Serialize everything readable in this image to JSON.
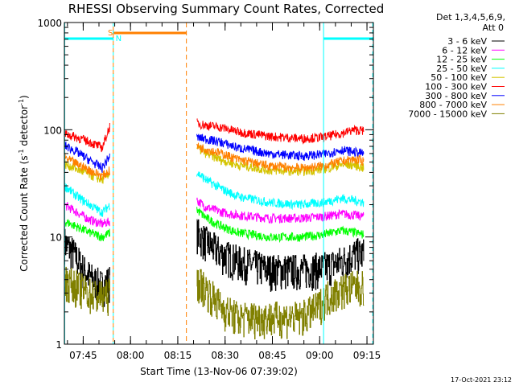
{
  "chart_data": {
    "type": "line",
    "title": "RHESSI Observing Summary Count Rates, Corrected",
    "xlabel": "Start Time (13-Nov-06 07:39:02)",
    "ylabel_main": "Corrected Count Rate (s",
    "ylabel_sup1": "-1",
    "ylabel_mid": " detector",
    "ylabel_sup2": "-1",
    "ylabel_end": ")",
    "y_scale": "log",
    "ylim": [
      1,
      1000
    ],
    "xlim_minutes": [
      0,
      98
    ],
    "x_ticks": [
      {
        "label": "07:45",
        "minute": 5.97
      },
      {
        "label": "08:00",
        "minute": 20.97
      },
      {
        "label": "08:15",
        "minute": 35.97
      },
      {
        "label": "08:30",
        "minute": 50.97
      },
      {
        "label": "08:45",
        "minute": 65.97
      },
      {
        "label": "09:00",
        "minute": 80.97
      },
      {
        "label": "09:15",
        "minute": 95.97
      }
    ],
    "y_ticks": [
      {
        "label": "1",
        "value": 1
      },
      {
        "label": "10",
        "value": 10
      },
      {
        "label": "100",
        "value": 100
      },
      {
        "label": "1000",
        "value": 1000
      }
    ],
    "legend_header": [
      "Det 1,3,4,5,6,9,",
      "Att 0"
    ],
    "series": [
      {
        "name": "3 - 6 keV",
        "color": "#000000",
        "a": [
          [
            0,
            9
          ],
          [
            3,
            7
          ],
          [
            6,
            5
          ],
          [
            9,
            4
          ],
          [
            12,
            3.5
          ],
          [
            14.5,
            4
          ]
        ],
        "b": [
          [
            42,
            11
          ],
          [
            45,
            9
          ],
          [
            50,
            7
          ],
          [
            55,
            6
          ],
          [
            65,
            5
          ],
          [
            75,
            5
          ],
          [
            82,
            5.2
          ],
          [
            88,
            6
          ],
          [
            92,
            7
          ],
          [
            95,
            7
          ]
        ]
      },
      {
        "name": "6 - 12 keV",
        "color": "#ff00ff",
        "a": [
          [
            0,
            20
          ],
          [
            4,
            17
          ],
          [
            8,
            14.5
          ],
          [
            12,
            13.2
          ],
          [
            14.5,
            14
          ]
        ],
        "b": [
          [
            42,
            22
          ],
          [
            45,
            19
          ],
          [
            50,
            17
          ],
          [
            55,
            16
          ],
          [
            65,
            15
          ],
          [
            75,
            15
          ],
          [
            82,
            15.5
          ],
          [
            88,
            16.5
          ],
          [
            92,
            16
          ],
          [
            95,
            15.5
          ]
        ]
      },
      {
        "name": "12 - 25 keV",
        "color": "#00ff00",
        "a": [
          [
            0,
            14
          ],
          [
            4,
            12.5
          ],
          [
            8,
            11
          ],
          [
            12,
            10
          ],
          [
            14.5,
            11
          ]
        ],
        "b": [
          [
            42,
            18
          ],
          [
            45,
            15
          ],
          [
            50,
            12.5
          ],
          [
            55,
            11
          ],
          [
            65,
            10
          ],
          [
            75,
            10
          ],
          [
            82,
            10.5
          ],
          [
            88,
            11.5
          ],
          [
            92,
            11
          ],
          [
            95,
            10.5
          ]
        ]
      },
      {
        "name": "25 - 50 keV",
        "color": "#00ffff",
        "a": [
          [
            0,
            30
          ],
          [
            4,
            24
          ],
          [
            8,
            20
          ],
          [
            12,
            17
          ],
          [
            14.5,
            20
          ]
        ],
        "b": [
          [
            42,
            40
          ],
          [
            45,
            34
          ],
          [
            50,
            28
          ],
          [
            55,
            24
          ],
          [
            65,
            21
          ],
          [
            75,
            20
          ],
          [
            82,
            21
          ],
          [
            88,
            23
          ],
          [
            92,
            22
          ],
          [
            95,
            21
          ]
        ]
      },
      {
        "name": "50 - 100 keV",
        "color": "#ffff00",
        "stroke": "#d4c400",
        "a": [
          [
            0,
            48
          ],
          [
            4,
            43
          ],
          [
            8,
            38
          ],
          [
            12,
            34
          ],
          [
            14.5,
            40
          ]
        ],
        "b": [
          [
            42,
            68
          ],
          [
            45,
            60
          ],
          [
            50,
            52
          ],
          [
            55,
            47
          ],
          [
            65,
            42
          ],
          [
            75,
            41
          ],
          [
            82,
            43
          ],
          [
            88,
            47
          ],
          [
            92,
            47
          ],
          [
            95,
            44
          ]
        ]
      },
      {
        "name": "100 - 300 keV",
        "color": "#ff0000",
        "a": [
          [
            0,
            92
          ],
          [
            4,
            85
          ],
          [
            8,
            77
          ],
          [
            12,
            68
          ],
          [
            14.5,
            110
          ]
        ],
        "b": [
          [
            42,
            115
          ],
          [
            45,
            110
          ],
          [
            50,
            105
          ],
          [
            55,
            96
          ],
          [
            65,
            87
          ],
          [
            75,
            83
          ],
          [
            82,
            85
          ],
          [
            88,
            93
          ],
          [
            92,
            100
          ],
          [
            95,
            98
          ]
        ]
      },
      {
        "name": "300 - 800 keV",
        "color": "#0000ff",
        "a": [
          [
            0,
            72
          ],
          [
            4,
            62
          ],
          [
            8,
            52
          ],
          [
            12,
            44
          ],
          [
            14.5,
            58
          ]
        ],
        "b": [
          [
            42,
            85
          ],
          [
            45,
            82
          ],
          [
            50,
            76
          ],
          [
            55,
            68
          ],
          [
            65,
            60
          ],
          [
            75,
            57
          ],
          [
            82,
            59
          ],
          [
            88,
            65
          ],
          [
            92,
            62
          ],
          [
            95,
            60
          ]
        ]
      },
      {
        "name": "800 - 7000 keV",
        "color": "#ff8000",
        "a": [
          [
            0,
            55
          ],
          [
            4,
            48
          ],
          [
            8,
            42
          ],
          [
            12,
            37
          ],
          [
            14.5,
            42
          ]
        ],
        "b": [
          [
            42,
            70
          ],
          [
            45,
            66
          ],
          [
            50,
            60
          ],
          [
            55,
            53
          ],
          [
            65,
            46
          ],
          [
            75,
            44
          ],
          [
            82,
            46
          ],
          [
            88,
            51
          ],
          [
            92,
            53
          ],
          [
            95,
            51
          ]
        ]
      },
      {
        "name": "7000 - 15000 keV",
        "color": "#808000",
        "a": [
          [
            0,
            4
          ],
          [
            4,
            3.5
          ],
          [
            8,
            3
          ],
          [
            12,
            2.8
          ],
          [
            14.5,
            3
          ]
        ],
        "b": [
          [
            42,
            4
          ],
          [
            45,
            3.3
          ],
          [
            48,
            2.6
          ],
          [
            50,
            2.2
          ],
          [
            55,
            1.8
          ],
          [
            65,
            1.8
          ],
          [
            75,
            1.8
          ],
          [
            80,
            2.2
          ],
          [
            83,
            2.8
          ],
          [
            88,
            3.3
          ],
          [
            92,
            3.5
          ],
          [
            95,
            3.5
          ]
        ]
      }
    ],
    "flags": {
      "saa_label": "S",
      "night_label": "N",
      "saa_bar_color": "#ff8000",
      "night_bar_color": "#00ffff"
    }
  },
  "footer": {
    "timestamp": "17-Oct-2021 23:12"
  }
}
